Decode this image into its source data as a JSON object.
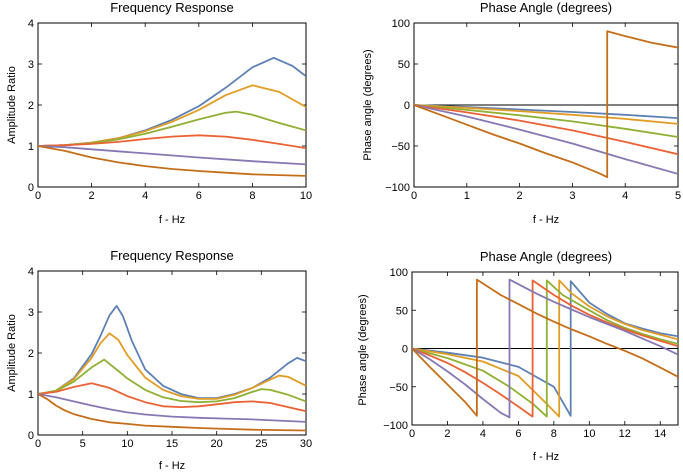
{
  "colors": [
    "#5E81B5",
    "#E19C24",
    "#8FB032",
    "#EB6235",
    "#8778B3",
    "#C56E1A"
  ],
  "chart_data": [
    {
      "type": "line",
      "title": "Frequency Response",
      "xlabel": "f - Hz",
      "ylabel": "Amplitude Ratio",
      "xlim": [
        0,
        10
      ],
      "ylim": [
        0,
        4
      ],
      "xticks": [
        0,
        2,
        4,
        6,
        8,
        10
      ],
      "yticks": [
        0,
        1,
        2,
        3,
        4
      ],
      "grid": false,
      "series": [
        {
          "x": [
            0,
            1,
            2,
            3,
            4,
            5,
            6,
            7,
            8,
            8.8,
            9.5,
            10
          ],
          "y": [
            1.0,
            1.02,
            1.08,
            1.19,
            1.38,
            1.64,
            1.97,
            2.42,
            2.92,
            3.15,
            2.95,
            2.7
          ]
        },
        {
          "x": [
            0,
            1,
            2,
            3,
            4,
            5,
            6,
            7,
            8,
            9,
            10
          ],
          "y": [
            1.0,
            1.02,
            1.08,
            1.19,
            1.36,
            1.59,
            1.88,
            2.24,
            2.48,
            2.32,
            1.95
          ]
        },
        {
          "x": [
            0,
            1,
            2,
            3,
            4,
            5,
            6,
            7,
            7.4,
            8,
            9,
            10
          ],
          "y": [
            1.0,
            1.02,
            1.07,
            1.16,
            1.3,
            1.47,
            1.65,
            1.81,
            1.84,
            1.76,
            1.56,
            1.38
          ]
        },
        {
          "x": [
            0,
            1,
            2,
            3,
            4,
            5,
            6,
            7,
            8,
            9,
            10
          ],
          "y": [
            1.0,
            1.02,
            1.05,
            1.1,
            1.17,
            1.23,
            1.26,
            1.23,
            1.15,
            1.05,
            0.95
          ]
        },
        {
          "x": [
            0,
            1,
            2,
            4,
            6,
            8,
            10
          ],
          "y": [
            1.0,
            0.97,
            0.92,
            0.82,
            0.72,
            0.63,
            0.55
          ]
        },
        {
          "x": [
            0,
            1,
            2,
            3,
            4,
            5,
            6,
            7,
            8,
            9,
            10
          ],
          "y": [
            1.0,
            0.88,
            0.72,
            0.6,
            0.51,
            0.44,
            0.39,
            0.35,
            0.31,
            0.29,
            0.27
          ]
        }
      ]
    },
    {
      "type": "line",
      "title": "Phase Angle (degrees)",
      "xlabel": "f - Hz",
      "ylabel": "Phase angle (degrees)",
      "xlim": [
        0,
        5
      ],
      "ylim": [
        -100,
        100
      ],
      "xticks": [
        0,
        1,
        2,
        3,
        4,
        5
      ],
      "yticks": [
        -100,
        -50,
        0,
        50,
        100
      ],
      "zero_line": true,
      "grid": false,
      "series": [
        {
          "x": [
            0,
            1,
            2,
            3,
            4,
            5
          ],
          "y": [
            0,
            -2.5,
            -5.5,
            -8.5,
            -12,
            -16
          ]
        },
        {
          "x": [
            0,
            1,
            2,
            3,
            4,
            5
          ],
          "y": [
            0,
            -3.5,
            -7.5,
            -12,
            -17,
            -23
          ]
        },
        {
          "x": [
            0,
            1,
            2,
            3,
            4,
            5
          ],
          "y": [
            0,
            -6,
            -12.5,
            -20,
            -29,
            -39
          ]
        },
        {
          "x": [
            0,
            1,
            2,
            3,
            4,
            5
          ],
          "y": [
            0,
            -9,
            -19,
            -31,
            -45,
            -60
          ]
        },
        {
          "x": [
            0,
            1,
            2,
            3,
            4,
            5
          ],
          "y": [
            0,
            -14,
            -30,
            -47,
            -66,
            -84
          ]
        },
        {
          "x": [
            0,
            0.5,
            1,
            1.5,
            2,
            2.5,
            3,
            3.5,
            3.66,
            3.66,
            4,
            4.5,
            5
          ],
          "y": [
            0,
            -12,
            -24,
            -36,
            -47,
            -59,
            -70,
            -83,
            -88,
            90,
            84,
            76,
            70
          ]
        }
      ]
    },
    {
      "type": "line",
      "title": "Frequency Response",
      "xlabel": "f - Hz",
      "ylabel": "Amplitude Ratio",
      "xlim": [
        0,
        30
      ],
      "ylim": [
        0,
        4
      ],
      "xticks": [
        0,
        5,
        10,
        15,
        20,
        25,
        30
      ],
      "yticks": [
        0,
        1,
        2,
        3,
        4
      ],
      "grid": false,
      "series": [
        {
          "x": [
            0,
            2,
            4,
            6,
            7,
            8,
            8.8,
            9.5,
            10.5,
            12,
            14,
            16,
            18,
            20,
            22,
            24,
            26,
            28,
            29,
            30
          ],
          "y": [
            1.0,
            1.08,
            1.38,
            1.97,
            2.42,
            2.92,
            3.15,
            2.9,
            2.3,
            1.6,
            1.2,
            1.0,
            0.9,
            0.9,
            1.0,
            1.15,
            1.4,
            1.75,
            1.88,
            1.8
          ]
        },
        {
          "x": [
            0,
            2,
            4,
            6,
            7,
            8,
            9,
            10,
            12,
            14,
            16,
            18,
            20,
            22,
            24,
            26,
            27,
            28,
            30
          ],
          "y": [
            1.0,
            1.08,
            1.36,
            1.88,
            2.24,
            2.48,
            2.32,
            1.95,
            1.4,
            1.1,
            0.95,
            0.88,
            0.88,
            0.98,
            1.15,
            1.35,
            1.45,
            1.42,
            1.2
          ]
        },
        {
          "x": [
            0,
            2,
            4,
            6,
            7.4,
            9,
            10,
            12,
            14,
            16,
            18,
            20,
            22,
            24,
            25,
            26,
            28,
            30
          ],
          "y": [
            1.0,
            1.07,
            1.3,
            1.65,
            1.84,
            1.56,
            1.38,
            1.1,
            0.92,
            0.83,
            0.8,
            0.82,
            0.9,
            1.05,
            1.12,
            1.1,
            0.98,
            0.82
          ]
        },
        {
          "x": [
            0,
            2,
            4,
            6,
            8,
            10,
            12,
            14,
            16,
            18,
            20,
            22,
            24,
            26,
            28,
            30
          ],
          "y": [
            1.0,
            1.05,
            1.17,
            1.26,
            1.15,
            0.95,
            0.8,
            0.7,
            0.68,
            0.7,
            0.75,
            0.8,
            0.82,
            0.78,
            0.68,
            0.58
          ]
        },
        {
          "x": [
            0,
            2,
            4,
            6,
            8,
            10,
            12,
            15,
            18,
            21,
            24,
            27,
            30
          ],
          "y": [
            1.0,
            0.92,
            0.82,
            0.72,
            0.63,
            0.55,
            0.5,
            0.45,
            0.42,
            0.4,
            0.38,
            0.35,
            0.32
          ]
        },
        {
          "x": [
            0,
            1,
            2,
            3,
            4,
            6,
            8,
            10,
            12,
            15,
            18,
            21,
            24,
            27,
            30
          ],
          "y": [
            1.0,
            0.88,
            0.72,
            0.6,
            0.51,
            0.39,
            0.31,
            0.27,
            0.23,
            0.2,
            0.17,
            0.15,
            0.13,
            0.12,
            0.11
          ]
        }
      ]
    },
    {
      "type": "line",
      "title": "Phase Angle (degrees)",
      "xlabel": "f - Hz",
      "ylabel": "Phase angle (degrees)",
      "xlim": [
        0,
        15
      ],
      "ylim": [
        -100,
        100
      ],
      "xticks": [
        0,
        2,
        4,
        6,
        8,
        10,
        12,
        14
      ],
      "yticks": [
        -100,
        -50,
        0,
        50,
        100
      ],
      "zero_line": true,
      "grid": false,
      "series": [
        {
          "x": [
            0,
            2,
            4,
            6,
            8,
            8.95,
            8.95,
            10,
            11,
            12,
            13,
            14,
            15
          ],
          "y": [
            0,
            -5.5,
            -12,
            -24,
            -50,
            -88,
            88,
            60,
            45,
            33,
            26,
            20,
            16
          ]
        },
        {
          "x": [
            0,
            2,
            4,
            6,
            7.5,
            8.3,
            8.3,
            9,
            10,
            11,
            12,
            13,
            14,
            15
          ],
          "y": [
            0,
            -7.5,
            -17,
            -36,
            -70,
            -89,
            89,
            72,
            55,
            42,
            32,
            24,
            18,
            12
          ]
        },
        {
          "x": [
            0,
            2,
            4,
            5.5,
            6.8,
            7.6,
            7.6,
            8.5,
            10,
            11,
            12,
            13,
            14,
            15
          ],
          "y": [
            0,
            -12.5,
            -29,
            -50,
            -72,
            -89,
            89,
            70,
            50,
            37,
            27,
            19,
            12,
            6
          ]
        },
        {
          "x": [
            0,
            1,
            2,
            3,
            4,
            5,
            6,
            6.8,
            6.8,
            8,
            9,
            10,
            11,
            12,
            13,
            14,
            15
          ],
          "y": [
            0,
            -9,
            -19,
            -31,
            -45,
            -60,
            -76,
            -89,
            89,
            70,
            56,
            44,
            34,
            25,
            17,
            10,
            3
          ]
        },
        {
          "x": [
            0,
            1,
            2,
            3,
            4,
            5,
            5.5,
            5.5,
            7,
            8,
            9,
            10,
            11,
            12,
            13,
            14,
            15
          ],
          "y": [
            0,
            -14,
            -30,
            -47,
            -66,
            -84,
            -90,
            90,
            72,
            61,
            51,
            41,
            32,
            23,
            13,
            3,
            -8
          ]
        },
        {
          "x": [
            0,
            1,
            2,
            3,
            3.66,
            3.66,
            5,
            6,
            7,
            8,
            9,
            10,
            11,
            12,
            13,
            14,
            15
          ],
          "y": [
            0,
            -24,
            -47,
            -70,
            -88,
            90,
            70,
            58,
            46,
            35,
            25,
            16,
            6,
            -3,
            -13,
            -25,
            -37
          ]
        }
      ]
    }
  ]
}
